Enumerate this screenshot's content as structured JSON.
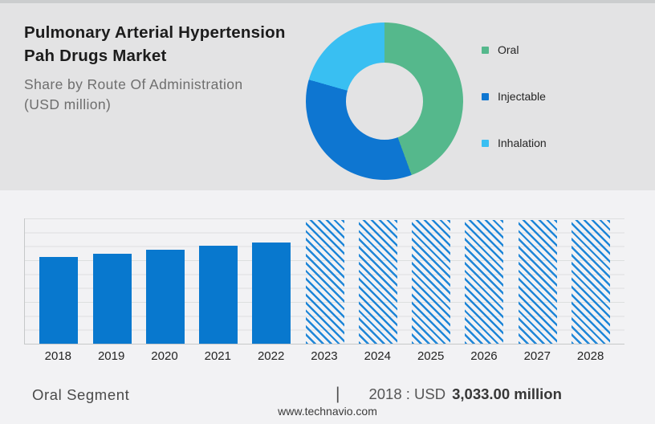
{
  "header": {
    "title_line1": "Pulmonary Arterial Hypertension",
    "title_line2": "Pah Drugs Market",
    "subtitle_line1": "Share by Route Of Administration",
    "subtitle_line2": "(USD million)"
  },
  "footer": {
    "segment_label": "Oral Segment",
    "separator": "|",
    "value_prefix": "2018 : USD",
    "value_bold": "3,033.00 million",
    "website": "www.technavio.com"
  },
  "colors": {
    "top_strip": "#cbcdce",
    "panel_top": "#e3e3e4",
    "panel_bottom": "#f2f2f4",
    "gridline": "#dddfdf",
    "axis_line": "#c6c8c9"
  },
  "chart_data": [
    {
      "type": "pie",
      "variant": "donut",
      "start_angle_deg": 0,
      "direction": "clockwise",
      "legend_position": "right",
      "segments": [
        {
          "label": "Oral",
          "pct": 44.4,
          "color": "#55B88C"
        },
        {
          "label": "Injectable",
          "pct": 35.0,
          "color": "#0E76D1"
        },
        {
          "label": "Inhalation",
          "pct": 20.6,
          "color": "#39BFF2"
        }
      ]
    },
    {
      "type": "bar",
      "categories": [
        "2018",
        "2019",
        "2020",
        "2021",
        "2022",
        "2023",
        "2024",
        "2025",
        "2026",
        "2027",
        "2028"
      ],
      "bars": [
        {
          "label": "2018",
          "height_pct": 69,
          "pattern": "solid"
        },
        {
          "label": "2019",
          "height_pct": 72,
          "pattern": "solid"
        },
        {
          "label": "2020",
          "height_pct": 75,
          "pattern": "solid"
        },
        {
          "label": "2021",
          "height_pct": 78,
          "pattern": "solid"
        },
        {
          "label": "2022",
          "height_pct": 81,
          "pattern": "solid"
        },
        {
          "label": "2023",
          "height_pct": 99,
          "pattern": "hatched"
        },
        {
          "label": "2024",
          "height_pct": 99,
          "pattern": "hatched"
        },
        {
          "label": "2025",
          "height_pct": 99,
          "pattern": "hatched"
        },
        {
          "label": "2026",
          "height_pct": 99,
          "pattern": "hatched"
        },
        {
          "label": "2027",
          "height_pct": 99,
          "pattern": "hatched"
        },
        {
          "label": "2028",
          "height_pct": 99,
          "pattern": "hatched"
        }
      ],
      "height_pct_note_unit": "percent of plot height (no y-axis labels shown)",
      "labeled_value": {
        "category": "2018",
        "value": 3033.0,
        "unit": "USD million"
      },
      "gridlines": true,
      "bar_color": "#0878CE",
      "hatch_color": "#1E86D8"
    }
  ]
}
